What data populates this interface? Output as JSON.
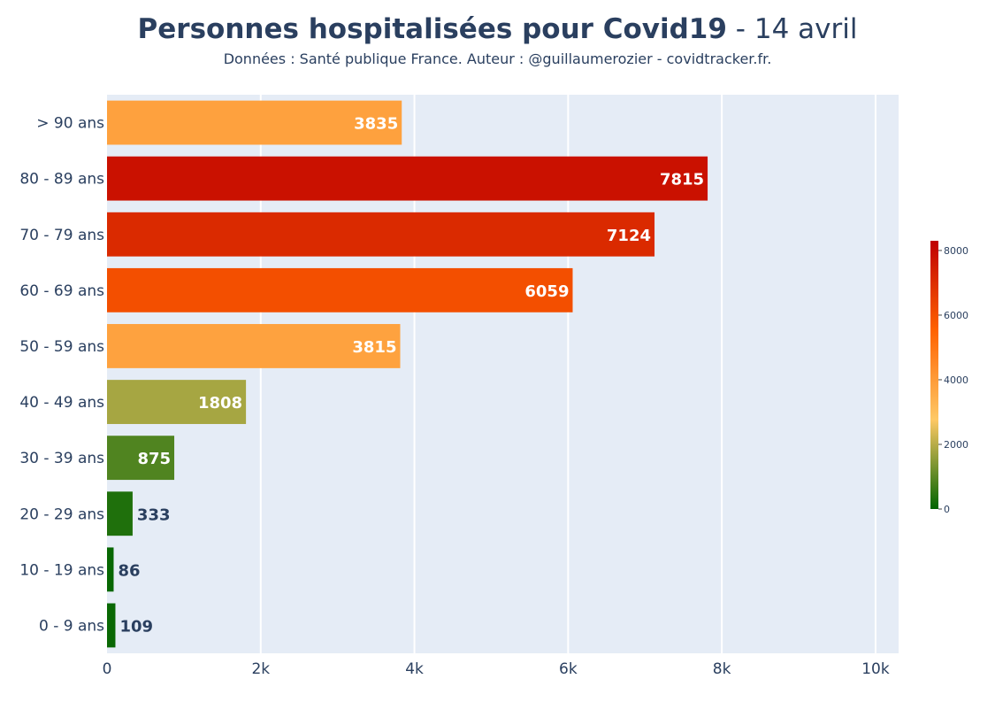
{
  "title_bold": "Personnes hospitalisées pour Covid19",
  "title_rest": " - 14 avril",
  "subtitle": "Données : Santé publique France. Auteur : @guillaumerozier - covidtracker.fr.",
  "colors": {
    "plot_bg": "#e5ecf6",
    "grid": "#ffffff",
    "text": "#2a3f5f",
    "colorscale": [
      "#006400",
      "#fec965",
      "#ff6200",
      "#bf0000"
    ]
  },
  "chart_data": {
    "type": "bar",
    "orientation": "horizontal",
    "title": "Personnes hospitalisées pour Covid19 - 14 avril",
    "categories": [
      "> 90 ans",
      "80 - 89 ans",
      "70 - 79 ans",
      "60 - 69 ans",
      "50 - 59 ans",
      "40 - 49 ans",
      "30 - 39 ans",
      "20 - 29 ans",
      "10 - 19 ans",
      "0 - 9 ans"
    ],
    "values": [
      3835,
      7815,
      7124,
      6059,
      3815,
      1808,
      875,
      333,
      86,
      109
    ],
    "xlim": [
      0,
      10300
    ],
    "xticks": [
      0,
      2000,
      4000,
      6000,
      8000,
      10000
    ],
    "xtick_labels": [
      "0",
      "2k",
      "4k",
      "6k",
      "8k",
      "10k"
    ],
    "grid": true,
    "colorbar": {
      "range": [
        0,
        8300
      ],
      "ticks": [
        0,
        2000,
        4000,
        6000,
        8000
      ],
      "tick_labels": [
        "0",
        "2000",
        "4000",
        "6000",
        "8000"
      ],
      "placement": "right"
    }
  }
}
